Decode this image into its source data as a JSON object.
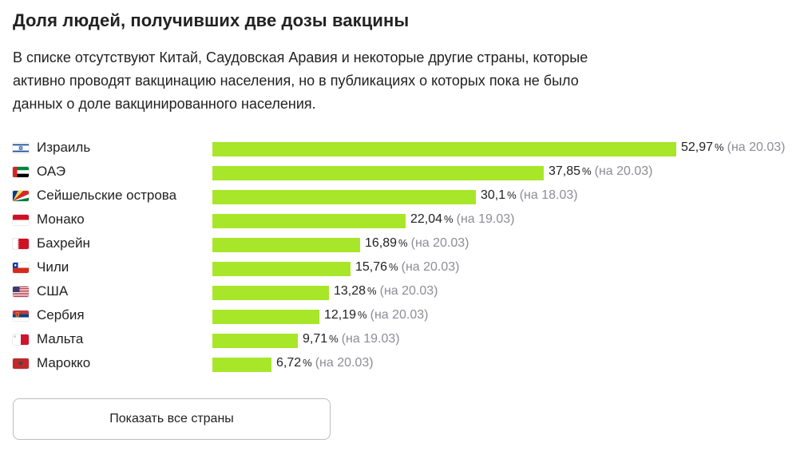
{
  "header": {
    "title": "Доля людей, получивших две дозы вакцины",
    "description": "В списке отсутствуют Китай, Саудовская Аравия и некоторые другие страны, которые активно проводят вакцинацию населения, но в публикациях о которых пока не было данных о доле вакцинированного населения."
  },
  "chart_data": {
    "type": "bar",
    "orientation": "horizontal",
    "title": "Доля людей, получивших две дозы вакцины",
    "unit": "%",
    "bar_color": "#a8e629",
    "categories": [
      "Израиль",
      "ОАЭ",
      "Сейшельские острова",
      "Монако",
      "Бахрейн",
      "Чили",
      "США",
      "Сербия",
      "Мальта",
      "Марокко"
    ],
    "values": [
      52.97,
      37.85,
      30.1,
      22.04,
      16.89,
      15.76,
      13.28,
      12.19,
      9.71,
      6.72
    ],
    "value_labels": [
      "52,97",
      "37,85",
      "30,1",
      "22,04",
      "16,89",
      "15,76",
      "13,28",
      "12,19",
      "9,71",
      "6,72"
    ],
    "dates": [
      "(на 20.03)",
      "(на 20.03)",
      "(на 18.03)",
      "(на 19.03)",
      "(на 20.03)",
      "(на 20.03)",
      "(на 20.03)",
      "(на 20.03)",
      "(на 19.03)",
      "(на 20.03)"
    ],
    "flag_icons": [
      "israel-flag-icon",
      "uae-flag-icon",
      "seychelles-flag-icon",
      "monaco-flag-icon",
      "bahrain-flag-icon",
      "chile-flag-icon",
      "usa-flag-icon",
      "serbia-flag-icon",
      "malta-flag-icon",
      "morocco-flag-icon"
    ],
    "xlim": [
      0,
      52.97
    ]
  },
  "button": {
    "label": "Показать все страны"
  }
}
